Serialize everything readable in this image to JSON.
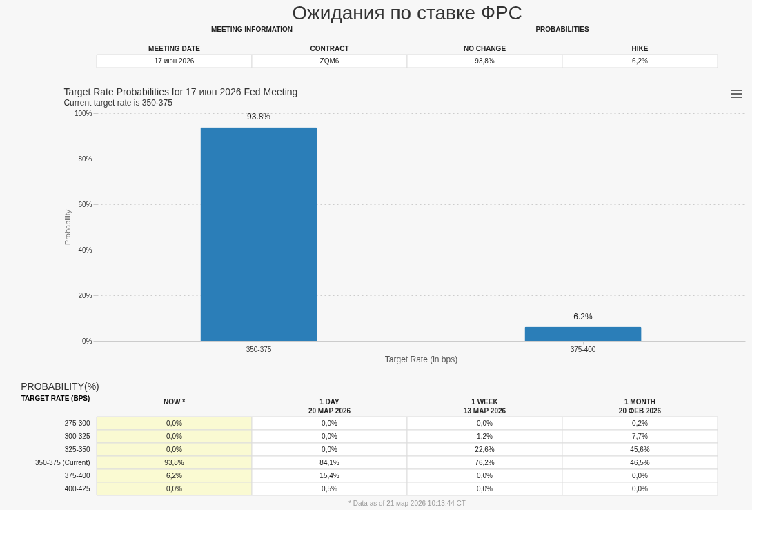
{
  "chart_data": [
    {
      "type": "other",
      "title": "Ожидания по ставке ФРС",
      "categories": [
        "MEETING DATE",
        "CONTRACT",
        "NO CHANGE",
        "HIKE"
      ],
      "value_labels": [
        "17 июн 2026",
        "ZQM6",
        "93,8%",
        "6,2%"
      ],
      "annotations": [
        "MEETING INFORMATION",
        "PROBABILITIES"
      ]
    },
    {
      "type": "bar",
      "title": "Target Rate Probabilities for 17 июн 2026 Fed Meeting",
      "subtitle": "Current target rate is 350-375",
      "xlabel": "Target Rate (in bps)",
      "ylabel": "Probability",
      "categories": [
        "350-375",
        "375-400"
      ],
      "values": [
        93.8,
        6.2
      ],
      "value_labels": [
        "93.8%",
        "6.2%"
      ],
      "color": "#2b7eb8",
      "ylim": [
        0,
        100
      ],
      "yticks": [
        {
          "value": 0,
          "label": "0%"
        },
        {
          "value": 20,
          "label": "20%"
        },
        {
          "value": 40,
          "label": "40%"
        },
        {
          "value": 60,
          "label": "60%"
        },
        {
          "value": 80,
          "label": "80%"
        },
        {
          "value": 100,
          "label": "100%"
        }
      ],
      "grid": "y"
    },
    {
      "type": "other",
      "title": "PROBABILITY(%)",
      "ylabel": "TARGET RATE (BPS)",
      "categories": [
        "NOW *",
        "1 DAY\n20 МАР 2026",
        "1 WEEK\n13 МАР 2026",
        "1 MONTH\n20 ФЕВ 2026"
      ],
      "colors": [
        "#fafad2",
        "#ffffff",
        "#ffffff",
        "#ffffff"
      ],
      "y_categories": [
        "275-300",
        "300-325",
        "325-350",
        "350-375 (Current)",
        "375-400",
        "400-425"
      ],
      "cell_labels": [
        [
          "0,0%",
          "0,0%",
          "0,0%",
          "0,2%"
        ],
        [
          "0,0%",
          "0,0%",
          "1,2%",
          "7,7%"
        ],
        [
          "0,0%",
          "0,0%",
          "22,6%",
          "45,6%"
        ],
        [
          "93,8%",
          "84,1%",
          "76,2%",
          "46,5%"
        ],
        [
          "6,2%",
          "15,4%",
          "0,0%",
          "0,0%"
        ],
        [
          "0,0%",
          "0,5%",
          "0,0%",
          "0,0%"
        ]
      ],
      "annotations": [
        "* Data as of 21 мар 2026 10:13:44 CT"
      ]
    }
  ]
}
